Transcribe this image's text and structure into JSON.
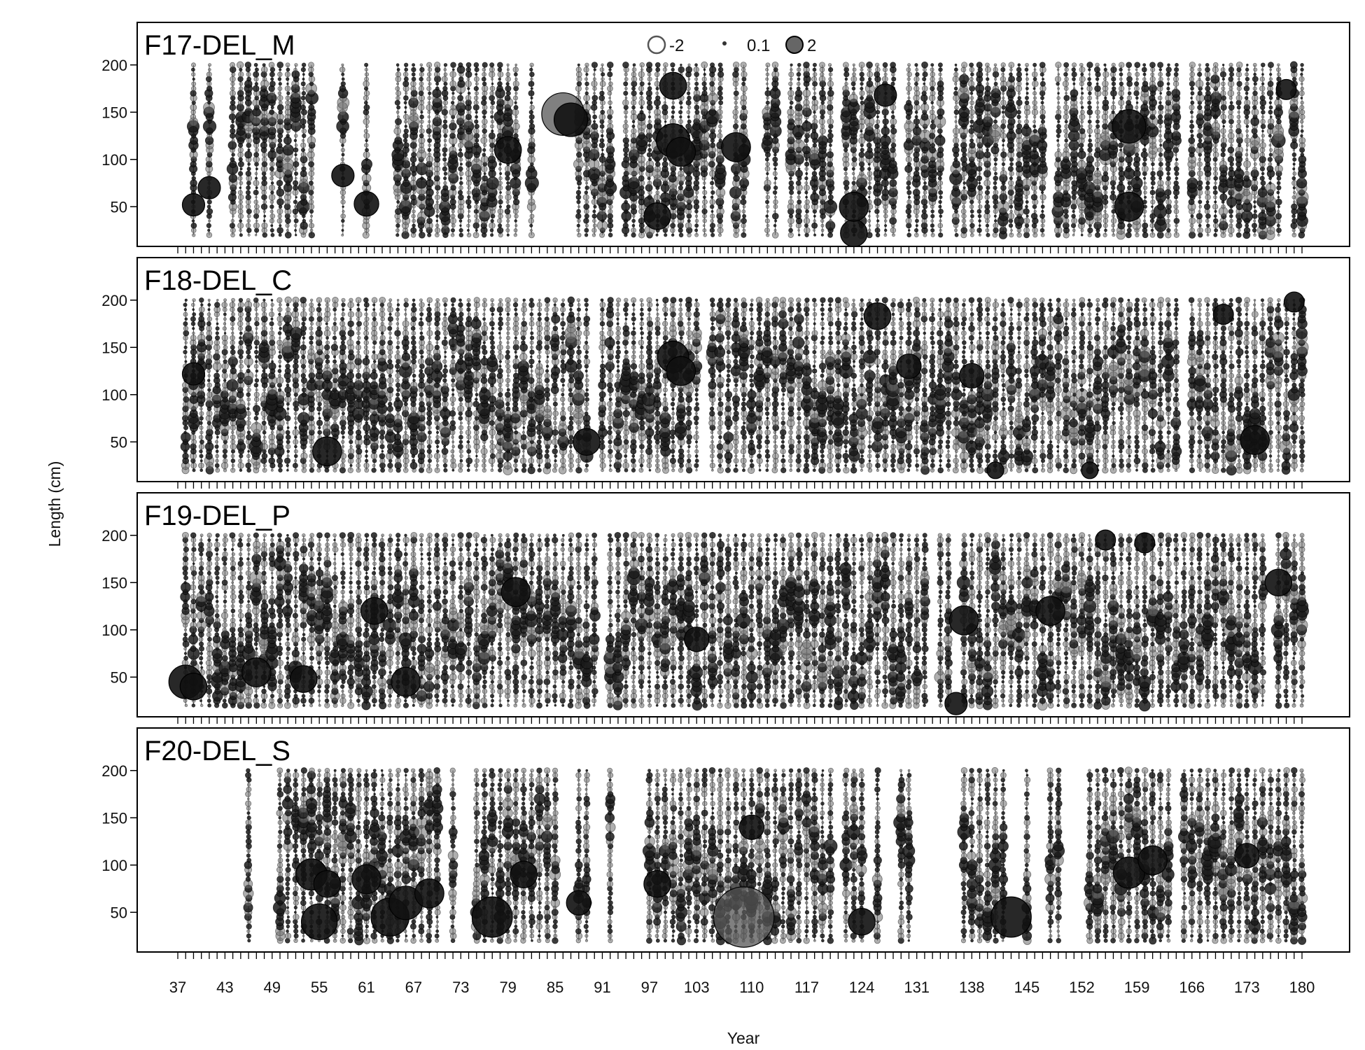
{
  "chart_data": {
    "type": "scatter",
    "subtype": "bubble residual plot, 4 stacked panels",
    "xlabel": "Year",
    "ylabel": "Length (cm)",
    "x_tick_labels": [
      "37",
      "43",
      "49",
      "55",
      "61",
      "67",
      "73",
      "79",
      "85",
      "91",
      "97",
      "103",
      "110",
      "117",
      "124",
      "131",
      "138",
      "145",
      "152",
      "159",
      "166",
      "173",
      "180"
    ],
    "y_tick_labels": [
      "50",
      "100",
      "150",
      "200"
    ],
    "ylim": [
      20,
      200
    ],
    "xlim": [
      37,
      180
    ],
    "legend": {
      "placement": "top-center",
      "entries": [
        {
          "label": "-2",
          "style": "open"
        },
        {
          "label": "0.1",
          "style": "small"
        },
        {
          "label": "2",
          "style": "filled"
        }
      ]
    },
    "colors": {
      "positive": "#1a1a1a",
      "negative": "#6e6e6e",
      "frame": "#000000"
    },
    "panels": [
      {
        "title": "F17-DEL_M",
        "x_sampled": [
          39,
          41,
          44,
          45,
          46,
          47,
          48,
          49,
          50,
          51,
          52,
          53,
          54,
          58,
          61,
          65,
          66,
          67,
          68,
          69,
          70,
          71,
          72,
          73,
          74,
          75,
          76,
          77,
          78,
          79,
          80,
          82,
          88,
          89,
          90,
          91,
          92,
          94,
          95,
          96,
          97,
          98,
          99,
          100,
          101,
          102,
          103,
          104,
          105,
          106,
          108,
          109,
          112,
          113,
          115,
          116,
          117,
          118,
          119,
          120,
          122,
          123,
          124,
          125,
          126,
          127,
          128,
          130,
          131,
          132,
          133,
          134,
          136,
          137,
          138,
          139,
          140,
          141,
          142,
          143,
          144,
          145,
          146,
          147,
          149,
          150,
          151,
          152,
          153,
          154,
          155,
          156,
          157,
          158,
          159,
          160,
          161,
          162,
          163,
          164,
          166,
          167,
          168,
          169,
          170,
          171,
          172,
          173,
          174,
          175,
          176,
          177,
          179,
          180
        ],
        "highlights": [
          {
            "x": 39,
            "y": 52,
            "r": 2.0
          },
          {
            "x": 41,
            "y": 70,
            "r": 2.0
          },
          {
            "x": 58,
            "y": 83,
            "r": 2.0
          },
          {
            "x": 61,
            "y": 53,
            "r": 2.2
          },
          {
            "x": 86,
            "y": 148,
            "r": 3.8
          },
          {
            "x": 87,
            "y": 142,
            "r": 3.0
          },
          {
            "x": 98,
            "y": 40,
            "r": 2.4
          },
          {
            "x": 100,
            "y": 178,
            "r": 2.4
          },
          {
            "x": 100,
            "y": 120,
            "r": 3.0
          },
          {
            "x": 101,
            "y": 108,
            "r": 2.6
          },
          {
            "x": 108,
            "y": 113,
            "r": 2.6
          },
          {
            "x": 123,
            "y": 22,
            "r": 2.4
          },
          {
            "x": 123,
            "y": 50,
            "r": 2.6
          },
          {
            "x": 127,
            "y": 168,
            "r": 2.0
          },
          {
            "x": 158,
            "y": 135,
            "r": 3.0
          },
          {
            "x": 158,
            "y": 50,
            "r": 2.6
          },
          {
            "x": 79,
            "y": 110,
            "r": 2.4
          },
          {
            "x": 178,
            "y": 174,
            "r": 1.8
          }
        ]
      },
      {
        "title": "F18-DEL_C",
        "x_sampled": [
          38,
          39,
          40,
          41,
          42,
          43,
          44,
          45,
          46,
          47,
          48,
          49,
          50,
          51,
          52,
          53,
          54,
          55,
          56,
          57,
          58,
          59,
          60,
          61,
          62,
          63,
          64,
          65,
          66,
          67,
          68,
          69,
          70,
          71,
          72,
          73,
          74,
          75,
          76,
          77,
          78,
          79,
          80,
          81,
          82,
          83,
          84,
          85,
          86,
          87,
          88,
          89,
          91,
          92,
          93,
          94,
          95,
          96,
          97,
          98,
          99,
          100,
          101,
          102,
          103,
          105,
          106,
          107,
          108,
          109,
          110,
          111,
          112,
          113,
          114,
          115,
          116,
          117,
          118,
          119,
          120,
          121,
          122,
          123,
          124,
          125,
          126,
          127,
          128,
          129,
          130,
          131,
          132,
          133,
          134,
          135,
          136,
          137,
          138,
          139,
          140,
          141,
          142,
          143,
          144,
          145,
          146,
          147,
          148,
          149,
          150,
          151,
          152,
          153,
          154,
          155,
          156,
          157,
          158,
          159,
          160,
          161,
          162,
          163,
          164,
          166,
          167,
          168,
          169,
          170,
          171,
          172,
          173,
          174,
          175,
          176,
          177,
          178,
          179,
          180
        ],
        "highlights": [
          {
            "x": 39,
            "y": 122,
            "r": 2.0
          },
          {
            "x": 56,
            "y": 40,
            "r": 2.6
          },
          {
            "x": 89,
            "y": 50,
            "r": 2.4
          },
          {
            "x": 100,
            "y": 140,
            "r": 2.8
          },
          {
            "x": 101,
            "y": 125,
            "r": 2.6
          },
          {
            "x": 126,
            "y": 183,
            "r": 2.4
          },
          {
            "x": 130,
            "y": 130,
            "r": 2.2
          },
          {
            "x": 138,
            "y": 120,
            "r": 2.2
          },
          {
            "x": 170,
            "y": 185,
            "r": 1.8
          },
          {
            "x": 174,
            "y": 52,
            "r": 2.6
          },
          {
            "x": 179,
            "y": 198,
            "r": 1.8
          },
          {
            "x": 141,
            "y": 20,
            "r": 1.5
          },
          {
            "x": 153,
            "y": 20,
            "r": 1.5
          }
        ]
      },
      {
        "title": "F19-DEL_P",
        "x_sampled": [
          38,
          39,
          40,
          41,
          42,
          43,
          44,
          45,
          46,
          47,
          48,
          49,
          50,
          51,
          52,
          53,
          54,
          55,
          56,
          57,
          58,
          59,
          60,
          61,
          62,
          63,
          64,
          65,
          66,
          67,
          68,
          69,
          70,
          71,
          72,
          73,
          74,
          75,
          76,
          77,
          78,
          79,
          80,
          81,
          82,
          83,
          84,
          85,
          86,
          87,
          88,
          89,
          90,
          92,
          93,
          94,
          95,
          96,
          97,
          98,
          99,
          100,
          101,
          102,
          103,
          104,
          105,
          106,
          107,
          108,
          109,
          110,
          111,
          112,
          113,
          114,
          115,
          116,
          117,
          118,
          119,
          120,
          121,
          122,
          123,
          124,
          125,
          126,
          127,
          128,
          129,
          130,
          131,
          132,
          134,
          135,
          137,
          138,
          139,
          140,
          141,
          142,
          143,
          144,
          145,
          146,
          147,
          148,
          149,
          150,
          151,
          152,
          153,
          154,
          155,
          156,
          157,
          158,
          159,
          160,
          161,
          162,
          163,
          164,
          165,
          166,
          167,
          168,
          169,
          170,
          171,
          172,
          173,
          174,
          175,
          177,
          178,
          179,
          180
        ],
        "highlights": [
          {
            "x": 38,
            "y": 45,
            "r": 3.0
          },
          {
            "x": 39,
            "y": 40,
            "r": 2.4
          },
          {
            "x": 47,
            "y": 55,
            "r": 2.6
          },
          {
            "x": 53,
            "y": 48,
            "r": 2.4
          },
          {
            "x": 62,
            "y": 120,
            "r": 2.4
          },
          {
            "x": 66,
            "y": 45,
            "r": 2.6
          },
          {
            "x": 80,
            "y": 140,
            "r": 2.6
          },
          {
            "x": 103,
            "y": 90,
            "r": 2.2
          },
          {
            "x": 136,
            "y": 22,
            "r": 2.0
          },
          {
            "x": 137,
            "y": 110,
            "r": 2.6
          },
          {
            "x": 155,
            "y": 195,
            "r": 1.8
          },
          {
            "x": 160,
            "y": 192,
            "r": 1.8
          },
          {
            "x": 177,
            "y": 150,
            "r": 2.4
          },
          {
            "x": 148,
            "y": 120,
            "r": 2.6
          }
        ]
      },
      {
        "title": "F20-DEL_S",
        "x_sampled": [
          46,
          50,
          51,
          52,
          53,
          54,
          55,
          56,
          57,
          58,
          59,
          60,
          61,
          62,
          63,
          64,
          65,
          66,
          67,
          68,
          69,
          70,
          72,
          75,
          76,
          77,
          78,
          79,
          80,
          81,
          82,
          83,
          84,
          85,
          88,
          89,
          92,
          97,
          98,
          99,
          100,
          101,
          102,
          103,
          104,
          105,
          106,
          107,
          108,
          109,
          110,
          111,
          112,
          113,
          114,
          115,
          116,
          117,
          118,
          119,
          120,
          122,
          123,
          124,
          126,
          129,
          130,
          137,
          138,
          139,
          140,
          141,
          142,
          145,
          148,
          149,
          153,
          154,
          155,
          156,
          157,
          158,
          159,
          160,
          161,
          162,
          163,
          165,
          166,
          167,
          168,
          169,
          170,
          171,
          172,
          173,
          174,
          175,
          176,
          177,
          178,
          179,
          180
        ],
        "highlights": [
          {
            "x": 55,
            "y": 40,
            "r": 3.2
          },
          {
            "x": 54,
            "y": 90,
            "r": 2.8
          },
          {
            "x": 56,
            "y": 80,
            "r": 2.4
          },
          {
            "x": 61,
            "y": 85,
            "r": 2.6
          },
          {
            "x": 64,
            "y": 45,
            "r": 3.4
          },
          {
            "x": 66,
            "y": 60,
            "r": 3.0
          },
          {
            "x": 69,
            "y": 70,
            "r": 2.6
          },
          {
            "x": 77,
            "y": 45,
            "r": 3.6
          },
          {
            "x": 81,
            "y": 90,
            "r": 2.4
          },
          {
            "x": 88,
            "y": 60,
            "r": 2.2
          },
          {
            "x": 98,
            "y": 80,
            "r": 2.4
          },
          {
            "x": 109,
            "y": 45,
            "r": 5.4
          },
          {
            "x": 110,
            "y": 140,
            "r": 2.2
          },
          {
            "x": 124,
            "y": 40,
            "r": 2.4
          },
          {
            "x": 143,
            "y": 45,
            "r": 3.6
          },
          {
            "x": 158,
            "y": 92,
            "r": 2.8
          },
          {
            "x": 161,
            "y": 105,
            "r": 2.6
          },
          {
            "x": 173,
            "y": 110,
            "r": 2.2
          }
        ]
      }
    ]
  }
}
